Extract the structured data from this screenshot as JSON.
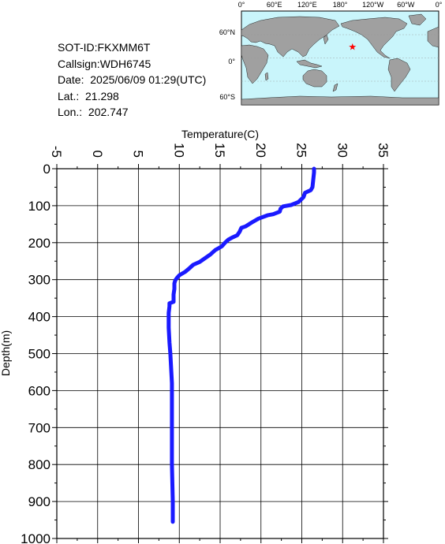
{
  "info": {
    "sot_id": "SOT-ID:FKXMM6T",
    "callsign": "Callsign:WDH6745",
    "date": "Date:  2025/06/09 01:29(UTC)",
    "lat": "Lat.:  21.298",
    "lon": "Lon.:  202.747"
  },
  "map": {
    "lon_labels": [
      "0°",
      "60°E",
      "120°E",
      "180°",
      "120°W",
      "60°W",
      "0°"
    ],
    "lat_labels": [
      "60°N",
      "0°",
      "60°S"
    ],
    "ocean_color": "#c9f5fb",
    "land_color": "#a0a0a0",
    "marker_color": "#ff0000",
    "marker_icon": "star-icon",
    "marker_lat": 21.298,
    "marker_lon": 202.747
  },
  "chart_data": {
    "type": "line",
    "xlabel": "Temperature(C)",
    "ylabel": "Depth(m)",
    "xlim": [
      -5,
      35
    ],
    "ylim": [
      1000,
      0
    ],
    "x_ticks": [
      -5,
      0,
      5,
      10,
      15,
      20,
      25,
      30,
      35
    ],
    "y_ticks": [
      0,
      100,
      200,
      300,
      400,
      500,
      600,
      700,
      800,
      900,
      1000
    ],
    "x_tick_labels": [
      "-5",
      "0",
      "5",
      "10",
      "15",
      "20",
      "25",
      "30",
      "35"
    ],
    "y_tick_labels": [
      "0",
      "100",
      "200",
      "300",
      "400",
      "500",
      "600",
      "700",
      "800",
      "900",
      "1000"
    ],
    "grid": true,
    "line_color": "#1a1aff",
    "series": [
      {
        "temperature": [
          26.5,
          26.5,
          26.4,
          26.3,
          26.1,
          25.4,
          25.2,
          24.6,
          23.7,
          22.7,
          22.4,
          22.3,
          21.5,
          20.8,
          19.7,
          18.9,
          18.1,
          17.6,
          17.4,
          17.1,
          16.5,
          16.0,
          15.6,
          15.2,
          14.4,
          13.8,
          12.5,
          11.7,
          11.2,
          10.7,
          10.0,
          9.7,
          9.5,
          9.4,
          9.4,
          9.3,
          9.3,
          8.8,
          8.8,
          8.7,
          8.7,
          8.8,
          8.9,
          9.0,
          9.1,
          9.1,
          9.1,
          9.1,
          9.2,
          9.2
        ],
        "depth": [
          0,
          10,
          30,
          50,
          58,
          65,
          77,
          90,
          98,
          102,
          108,
          116,
          123,
          126,
          135,
          145,
          156,
          160,
          170,
          180,
          186,
          192,
          200,
          210,
          220,
          232,
          252,
          260,
          270,
          279,
          288,
          296,
          302,
          310,
          325,
          340,
          360,
          364,
          372,
          390,
          430,
          470,
          500,
          540,
          580,
          620,
          700,
          800,
          900,
          955
        ]
      }
    ]
  }
}
